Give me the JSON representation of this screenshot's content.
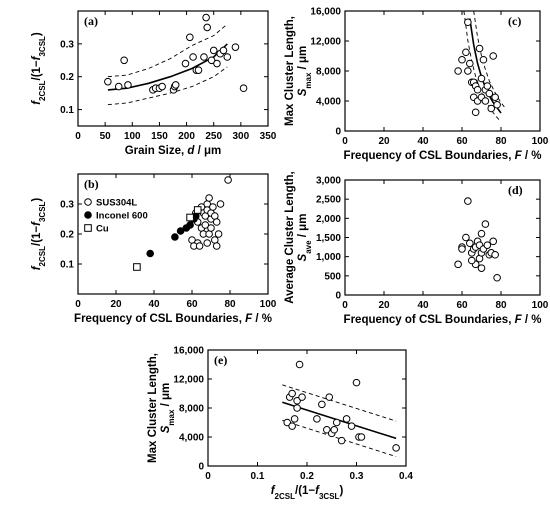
{
  "chart_data": [
    {
      "panel": "(a)",
      "type": "scatter",
      "xlabel": "Grain Size, d / μm",
      "ylabel": "f2CSL/(1−f3CSL)",
      "xlim": [
        0,
        350
      ],
      "ylim": [
        0.05,
        0.4
      ],
      "xticks": [
        0,
        50,
        100,
        150,
        200,
        250,
        300,
        350
      ],
      "yticks": [
        0.1,
        0.2,
        0.3
      ],
      "series": [
        {
          "marker": "open-circle",
          "x": [
            55,
            75,
            85,
            92,
            138,
            143,
            150,
            155,
            176,
            178,
            180,
            198,
            206,
            212,
            218,
            222,
            232,
            236,
            238,
            246,
            250,
            256,
            262,
            268,
            275,
            290,
            305
          ],
          "y": [
            0.185,
            0.17,
            0.25,
            0.175,
            0.16,
            0.165,
            0.165,
            0.17,
            0.16,
            0.17,
            0.175,
            0.24,
            0.32,
            0.26,
            0.22,
            0.22,
            0.26,
            0.38,
            0.35,
            0.25,
            0.28,
            0.24,
            0.27,
            0.28,
            0.26,
            0.29,
            0.165
          ]
        }
      ],
      "fit": {
        "x": [
          55,
          90,
          130,
          170,
          210,
          250,
          275
        ],
        "y": [
          0.16,
          0.165,
          0.18,
          0.2,
          0.225,
          0.26,
          0.3
        ]
      },
      "band_upper": {
        "x": [
          55,
          90,
          130,
          170,
          210,
          250,
          275
        ],
        "y": [
          0.2,
          0.205,
          0.225,
          0.255,
          0.295,
          0.325,
          0.36
        ]
      },
      "band_lower": {
        "x": [
          55,
          90,
          130,
          170,
          210,
          250,
          275
        ],
        "y": [
          0.115,
          0.12,
          0.135,
          0.15,
          0.17,
          0.2,
          0.23
        ]
      }
    },
    {
      "panel": "(b)",
      "type": "scatter",
      "xlabel": "Frequency of CSL Boundaries, F / %",
      "ylabel": "f2CSL/(1−f3CSL)",
      "xlim": [
        0,
        100
      ],
      "ylim": [
        0,
        0.4
      ],
      "xticks": [
        0,
        20,
        40,
        60,
        80,
        100
      ],
      "yticks": [
        0.1,
        0.2,
        0.3
      ],
      "legend": [
        "SUS304L",
        "Inconel 600",
        "Cu"
      ],
      "series": [
        {
          "name": "SUS304L",
          "marker": "open-circle",
          "x": [
            60,
            62,
            63,
            64,
            65,
            66,
            67,
            68,
            68,
            69,
            70,
            70,
            71,
            72,
            73,
            60,
            63,
            65,
            66,
            67,
            68,
            69,
            70,
            72,
            73,
            74,
            75,
            61,
            64,
            79
          ],
          "y": [
            0.25,
            0.27,
            0.24,
            0.28,
            0.29,
            0.27,
            0.26,
            0.3,
            0.28,
            0.32,
            0.25,
            0.27,
            0.29,
            0.26,
            0.24,
            0.18,
            0.17,
            0.22,
            0.2,
            0.23,
            0.17,
            0.2,
            0.22,
            0.18,
            0.16,
            0.2,
            0.3,
            0.16,
            0.16,
            0.38
          ]
        },
        {
          "name": "Inconel 600",
          "marker": "filled-circle",
          "x": [
            38,
            51,
            54,
            57,
            59,
            61,
            62,
            63
          ],
          "y": [
            0.135,
            0.19,
            0.21,
            0.22,
            0.23,
            0.25,
            0.26,
            0.28
          ]
        },
        {
          "name": "Cu",
          "marker": "open-square",
          "x": [
            31,
            59,
            63
          ],
          "y": [
            0.09,
            0.255,
            0.28
          ]
        }
      ]
    },
    {
      "panel": "(c)",
      "type": "scatter",
      "xlabel": "Frequency of CSL Boundaries, F / %",
      "ylabel": "Max Cluster Length, Smax / μm",
      "xlim": [
        0,
        100
      ],
      "ylim": [
        0,
        16000
      ],
      "xticks": [
        0,
        20,
        40,
        60,
        80,
        100
      ],
      "yticks": [
        0,
        4000,
        8000,
        12000,
        16000
      ],
      "series": [
        {
          "marker": "open-circle",
          "x": [
            58,
            60,
            62,
            63,
            64,
            65,
            66,
            66,
            67,
            68,
            68,
            69,
            70,
            70,
            71,
            72,
            72,
            73,
            74,
            75,
            76,
            77,
            78,
            63,
            67
          ],
          "y": [
            8000,
            9500,
            10500,
            14500,
            9000,
            6500,
            4500,
            6500,
            6000,
            5500,
            4000,
            11000,
            7000,
            4500,
            9500,
            5500,
            4000,
            6000,
            5000,
            3000,
            10000,
            4500,
            3500,
            8000,
            2500
          ]
        }
      ],
      "fit": {
        "x": [
          64,
          66,
          68,
          70,
          72,
          74,
          76,
          78,
          80
        ],
        "y": [
          15000,
          11500,
          9000,
          7200,
          5800,
          4700,
          3800,
          3100,
          2400
        ]
      },
      "band_upper": {
        "x": [
          66,
          68,
          70,
          72,
          74,
          76,
          78,
          80,
          82
        ],
        "y": [
          16000,
          12500,
          10000,
          8200,
          6700,
          5600,
          4600,
          3800,
          3100
        ]
      },
      "band_lower": {
        "x": [
          61,
          63,
          65,
          67,
          69,
          71,
          73,
          75,
          77,
          79
        ],
        "y": [
          16000,
          12000,
          9300,
          7300,
          5800,
          4600,
          3600,
          2800,
          2100,
          1500
        ]
      }
    },
    {
      "panel": "(d)",
      "type": "scatter",
      "xlabel": "Frequency of CSL Boundaries, F / %",
      "ylabel": "Average Cluster Length, Save / μm",
      "xlim": [
        0,
        100
      ],
      "ylim": [
        0,
        3000
      ],
      "xticks": [
        0,
        20,
        40,
        60,
        80,
        100
      ],
      "yticks": [
        0,
        500,
        1000,
        1500,
        2000,
        2500,
        3000
      ],
      "series": [
        {
          "marker": "open-circle",
          "x": [
            58,
            60,
            62,
            63,
            64,
            65,
            66,
            67,
            67,
            68,
            69,
            69,
            70,
            70,
            71,
            72,
            73,
            74,
            75,
            76,
            77,
            78,
            60,
            65,
            70
          ],
          "y": [
            800,
            1250,
            1500,
            2450,
            1350,
            1100,
            1200,
            1250,
            800,
            1400,
            1300,
            950,
            1100,
            700,
            1200,
            1850,
            1300,
            1050,
            1100,
            1400,
            1050,
            450,
            1200,
            900,
            1600
          ]
        }
      ]
    },
    {
      "panel": "(e)",
      "type": "scatter",
      "xlabel": "f2CSL/(1−f3CSL)",
      "ylabel": "Max Cluster Length, Smax / μm",
      "xlim": [
        0,
        0.4
      ],
      "ylim": [
        0,
        16000
      ],
      "xticks": [
        0,
        0.1,
        0.2,
        0.3,
        0.4
      ],
      "yticks": [
        0,
        4000,
        8000,
        12000,
        16000
      ],
      "series": [
        {
          "marker": "open-circle",
          "x": [
            0.16,
            0.165,
            0.17,
            0.17,
            0.175,
            0.18,
            0.18,
            0.185,
            0.19,
            0.22,
            0.23,
            0.24,
            0.245,
            0.25,
            0.255,
            0.26,
            0.27,
            0.28,
            0.29,
            0.3,
            0.305,
            0.31,
            0.38
          ],
          "y": [
            6000,
            9500,
            5500,
            10000,
            6500,
            9000,
            8000,
            14000,
            9500,
            6500,
            8500,
            5000,
            9500,
            4500,
            5000,
            6000,
            3500,
            6500,
            5500,
            11500,
            4000,
            4000,
            2500
          ]
        }
      ],
      "fit": {
        "x": [
          0.15,
          0.38
        ],
        "y": [
          8800,
          3800
        ]
      },
      "band_upper": {
        "x": [
          0.15,
          0.38
        ],
        "y": [
          11200,
          6200
        ]
      },
      "band_lower": {
        "x": [
          0.15,
          0.38
        ],
        "y": [
          6300,
          1300
        ]
      }
    }
  ]
}
